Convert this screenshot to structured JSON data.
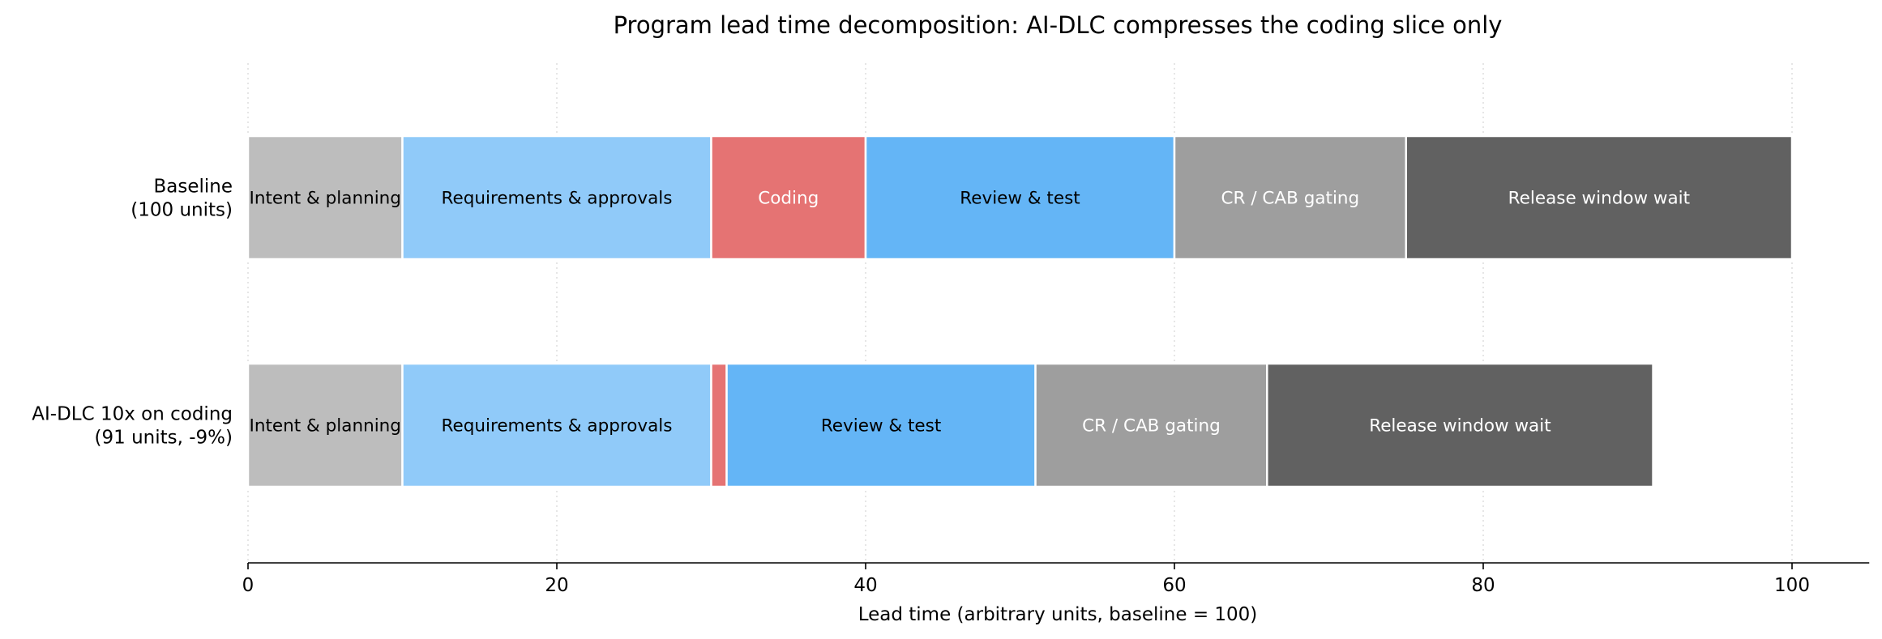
{
  "chart_data": {
    "type": "bar",
    "orientation": "horizontal",
    "stacked": true,
    "title": "Program lead time decomposition: AI-DLC compresses the coding slice only",
    "xlabel": "Lead time (arbitrary units, baseline = 100)",
    "ylabel": "",
    "xlim": [
      0,
      105
    ],
    "xticks": [
      0,
      20,
      40,
      60,
      80,
      100
    ],
    "grid": "x-dotted",
    "legend": "none",
    "categories": [
      [
        "Baseline",
        "(100 units)"
      ],
      [
        "AI-DLC 10x on coding",
        "(91 units, -9%)"
      ]
    ],
    "rows": [
      {
        "segments": [
          {
            "label": "Intent & planning",
            "value": 10,
            "color": "#bdbdbd",
            "text_color": "#000000"
          },
          {
            "label": "Requirements & approvals",
            "value": 20,
            "color": "#90caf9",
            "text_color": "#000000"
          },
          {
            "label": "Coding",
            "value": 10,
            "color": "#e57373",
            "text_color": "#ffffff"
          },
          {
            "label": "Review & test",
            "value": 20,
            "color": "#64b5f6",
            "text_color": "#000000"
          },
          {
            "label": "CR / CAB gating",
            "value": 15,
            "color": "#9e9e9e",
            "text_color": "#ffffff"
          },
          {
            "label": "Release window wait",
            "value": 25,
            "color": "#616161",
            "text_color": "#ffffff"
          }
        ]
      },
      {
        "segments": [
          {
            "label": "Intent & planning",
            "value": 10,
            "color": "#bdbdbd",
            "text_color": "#000000"
          },
          {
            "label": "Requirements & approvals",
            "value": 20,
            "color": "#90caf9",
            "text_color": "#000000"
          },
          {
            "label": "",
            "value": 1,
            "color": "#e57373",
            "text_color": "#ffffff"
          },
          {
            "label": "Review & test",
            "value": 20,
            "color": "#64b5f6",
            "text_color": "#000000"
          },
          {
            "label": "CR / CAB gating",
            "value": 15,
            "color": "#9e9e9e",
            "text_color": "#ffffff"
          },
          {
            "label": "Release window wait",
            "value": 25,
            "color": "#616161",
            "text_color": "#ffffff"
          }
        ]
      }
    ]
  }
}
